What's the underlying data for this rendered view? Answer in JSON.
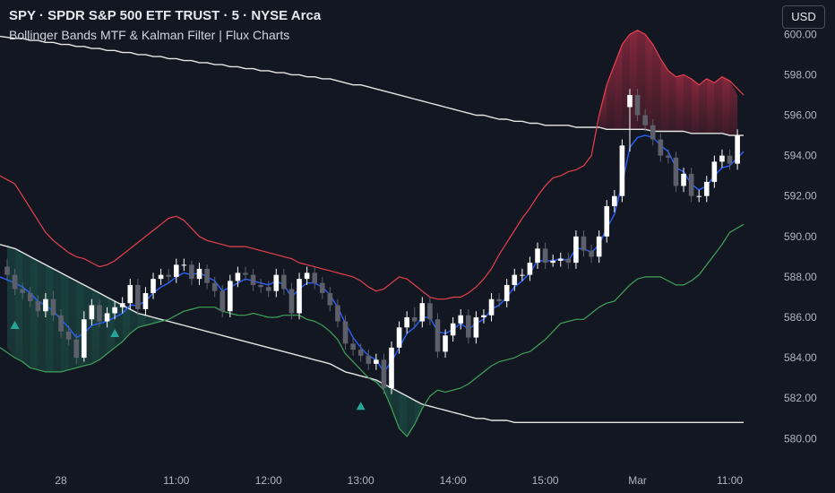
{
  "header": {
    "title": "SPY · SPDR S&P 500 ETF TRUST · 5 · NYSE Arca",
    "subtitle": "Bollinger Bands MTF & Kalman Filter | Flux Charts",
    "currency_button": "USD"
  },
  "colors": {
    "background": "#131722",
    "up_candle": "#ffffff",
    "down_candle": "#5d606b",
    "upper_band": "#e8404f",
    "lower_band": "#3fa35a",
    "kalman": "#2962ff",
    "htf_band": "#e6e6e6",
    "signal": "#26a69a"
  },
  "chart_data": {
    "type": "candlestick",
    "ylim": [
      579.5,
      602.0
    ],
    "y_ticks": [
      "580.00",
      "582.00",
      "584.00",
      "586.00",
      "588.00",
      "590.00",
      "592.00",
      "594.00",
      "596.00",
      "598.00",
      "600.00"
    ],
    "x_ticks": [
      {
        "label": "28",
        "bar": 7
      },
      {
        "label": "11:00",
        "bar": 22
      },
      {
        "label": "12:00",
        "bar": 34
      },
      {
        "label": "13:00",
        "bar": 46
      },
      {
        "label": "14:00",
        "bar": 58
      },
      {
        "label": "15:00",
        "bar": 70
      },
      {
        "label": "Mar",
        "bar": 82
      },
      {
        "label": "11:00",
        "bar": 94
      }
    ],
    "close": [
      588.1,
      587.4,
      587.2,
      586.8,
      586.3,
      586.9,
      586.1,
      585.3,
      584.9,
      584.0,
      585.9,
      586.6,
      585.8,
      586.2,
      586.5,
      586.7,
      587.6,
      586.4,
      587.2,
      587.9,
      588.1,
      588.0,
      588.6,
      588.6,
      587.9,
      588.4,
      587.7,
      587.3,
      586.3,
      587.8,
      588.2,
      588.1,
      587.6,
      587.5,
      587.3,
      588.1,
      587.4,
      586.2,
      587.9,
      588.2,
      587.7,
      587.2,
      586.6,
      585.8,
      584.7,
      584.4,
      584.1,
      583.7,
      583.9,
      582.5,
      584.5,
      585.5,
      586.0,
      585.8,
      586.7,
      585.9,
      584.3,
      585.1,
      585.7,
      586.1,
      585.0,
      586.0,
      586.1,
      586.9,
      586.8,
      587.6,
      588.1,
      588.1,
      588.7,
      589.4,
      588.7,
      588.8,
      588.9,
      588.7,
      590.0,
      589.3,
      589.0,
      590.0,
      591.5,
      592.0,
      594.5,
      597.0,
      596.0,
      595.5,
      594.8,
      594.0,
      593.9,
      592.5,
      593.1,
      592.0,
      592.0,
      592.7,
      593.7,
      594.0,
      593.6,
      595.0
    ],
    "open": [
      588.5,
      588.1,
      587.4,
      587.2,
      586.8,
      586.3,
      586.9,
      586.1,
      585.3,
      584.9,
      584.0,
      585.9,
      586.6,
      585.8,
      586.2,
      586.5,
      586.7,
      587.6,
      586.4,
      587.2,
      587.9,
      588.1,
      588.0,
      588.6,
      588.6,
      587.9,
      588.4,
      587.7,
      587.3,
      586.3,
      587.8,
      588.2,
      588.1,
      587.6,
      587.5,
      587.3,
      588.1,
      587.4,
      586.2,
      587.9,
      588.2,
      587.7,
      587.2,
      586.6,
      585.8,
      584.7,
      584.4,
      584.1,
      583.7,
      583.9,
      582.5,
      584.5,
      585.5,
      586.0,
      585.8,
      586.7,
      585.9,
      584.3,
      585.1,
      585.7,
      586.1,
      585.0,
      586.0,
      586.1,
      586.9,
      586.8,
      587.6,
      588.1,
      588.1,
      588.7,
      589.4,
      588.7,
      588.8,
      588.9,
      588.7,
      590.0,
      589.3,
      589.0,
      590.0,
      591.5,
      592.0,
      596.4,
      597.0,
      596.0,
      595.5,
      594.8,
      594.0,
      593.9,
      592.5,
      593.1,
      592.0,
      592.0,
      592.7,
      593.7,
      594.0,
      593.6
    ],
    "high": [
      588.9,
      588.4,
      587.7,
      587.5,
      587.1,
      587.2,
      587.3,
      586.4,
      585.6,
      585.2,
      586.3,
      586.9,
      586.9,
      586.5,
      586.8,
      587.0,
      587.9,
      587.9,
      587.5,
      588.2,
      588.4,
      588.4,
      588.9,
      588.9,
      588.8,
      588.7,
      588.6,
      588.0,
      587.6,
      588.1,
      588.5,
      588.5,
      588.4,
      587.9,
      587.8,
      588.4,
      588.4,
      587.7,
      588.2,
      588.5,
      588.5,
      588.0,
      587.5,
      586.9,
      586.1,
      585.0,
      584.7,
      584.4,
      584.2,
      584.2,
      584.8,
      585.8,
      586.3,
      586.5,
      587.0,
      587.0,
      586.2,
      585.4,
      586.0,
      586.4,
      586.4,
      586.3,
      586.4,
      587.2,
      587.2,
      587.9,
      588.4,
      588.4,
      589.0,
      589.7,
      589.7,
      589.1,
      589.2,
      589.2,
      590.3,
      590.3,
      589.6,
      590.3,
      591.8,
      592.3,
      594.8,
      597.3,
      597.3,
      596.3,
      595.8,
      595.1,
      594.3,
      594.2,
      593.4,
      593.4,
      592.3,
      593.0,
      594.0,
      594.3,
      594.3,
      595.3
    ],
    "low": [
      587.8,
      587.1,
      586.9,
      586.5,
      586.0,
      586.0,
      585.8,
      585.0,
      584.6,
      583.7,
      583.8,
      585.6,
      585.5,
      585.5,
      585.9,
      586.2,
      586.4,
      586.1,
      586.1,
      586.9,
      587.6,
      587.7,
      587.7,
      588.3,
      587.6,
      587.6,
      587.4,
      587.0,
      586.0,
      586.0,
      587.5,
      587.8,
      587.3,
      587.2,
      587.0,
      587.0,
      587.1,
      585.9,
      585.9,
      587.6,
      587.4,
      586.9,
      586.3,
      585.5,
      584.4,
      584.1,
      583.8,
      583.4,
      583.4,
      582.2,
      582.2,
      584.2,
      585.2,
      585.5,
      585.5,
      585.6,
      584.0,
      584.0,
      584.8,
      585.4,
      584.7,
      584.7,
      585.7,
      585.8,
      586.5,
      586.5,
      587.3,
      587.8,
      587.8,
      588.4,
      588.4,
      588.5,
      588.5,
      588.4,
      588.4,
      589.0,
      588.7,
      588.7,
      589.7,
      591.2,
      591.7,
      594.2,
      595.7,
      595.2,
      594.5,
      593.7,
      593.6,
      592.2,
      592.2,
      591.7,
      591.7,
      591.7,
      592.4,
      593.4,
      593.3,
      593.3
    ],
    "upper_band": [
      593.0,
      592.6,
      592.0,
      591.4,
      590.8,
      590.2,
      589.8,
      589.5,
      589.2,
      589.0,
      588.9,
      588.7,
      588.5,
      588.6,
      588.8,
      589.1,
      589.4,
      589.7,
      590.0,
      590.3,
      590.6,
      590.9,
      591.0,
      590.8,
      590.4,
      590.0,
      589.8,
      589.7,
      589.6,
      589.5,
      589.5,
      589.5,
      589.4,
      589.3,
      589.2,
      589.1,
      589.0,
      588.9,
      588.7,
      588.6,
      588.5,
      588.4,
      588.3,
      588.2,
      588.1,
      588.0,
      587.8,
      587.5,
      587.3,
      587.4,
      587.7,
      588.0,
      587.9,
      587.6,
      587.3,
      587.0,
      586.9,
      586.9,
      587.0,
      587.0,
      587.2,
      587.5,
      587.9,
      588.4,
      589.1,
      589.7,
      590.3,
      590.9,
      591.4,
      592.0,
      592.5,
      592.9,
      593.0,
      593.2,
      593.3,
      593.5,
      594.0,
      596.0,
      597.5,
      598.5,
      599.5,
      600.0,
      600.2,
      600.0,
      599.5,
      598.8,
      598.2,
      597.9,
      598.0,
      597.8,
      597.5,
      597.8,
      597.6,
      597.9,
      597.7,
      597.0
    ],
    "lower_band": [
      584.5,
      584.0,
      583.8,
      583.5,
      583.4,
      583.3,
      583.3,
      583.3,
      583.4,
      583.5,
      583.6,
      583.7,
      583.9,
      584.2,
      584.5,
      584.8,
      585.2,
      585.5,
      585.6,
      585.7,
      585.8,
      585.9,
      586.1,
      586.3,
      586.4,
      586.5,
      586.5,
      586.5,
      586.3,
      586.2,
      586.1,
      586.1,
      586.2,
      586.1,
      586.0,
      586.0,
      586.1,
      586.1,
      586.1,
      585.9,
      585.8,
      585.6,
      585.3,
      584.9,
      584.2,
      583.8,
      583.4,
      583.0,
      582.8,
      582.4,
      581.5,
      580.5,
      580.1,
      580.7,
      581.5,
      582.1,
      582.4,
      582.3,
      582.4,
      582.5,
      582.7,
      583.0,
      583.3,
      583.6,
      583.8,
      583.9,
      584.0,
      584.2,
      584.3,
      584.6,
      584.9,
      585.3,
      585.7,
      585.8,
      585.9,
      585.9,
      586.2,
      586.5,
      586.7,
      586.8,
      587.2,
      587.6,
      587.9,
      588.0,
      588.0,
      588.0,
      587.8,
      587.6,
      587.6,
      587.8,
      588.1,
      588.6,
      589.1,
      589.6,
      590.2,
      590.6
    ],
    "htf_band": [
      589.6,
      589.4,
      589.2,
      589.0,
      588.8,
      588.6,
      588.4,
      588.2,
      588.0,
      587.8,
      587.6,
      587.4,
      587.2,
      587.0,
      586.8,
      586.6,
      586.4,
      586.2,
      586.1,
      586.0,
      585.9,
      585.8,
      585.7,
      585.6,
      585.5,
      585.4,
      585.3,
      585.2,
      585.1,
      585.0,
      584.9,
      584.8,
      584.7,
      584.6,
      584.5,
      584.4,
      584.3,
      584.2,
      584.1,
      584.0,
      583.9,
      583.8,
      583.7,
      583.5,
      583.3,
      583.2,
      583.1,
      583.0,
      582.9,
      582.7,
      582.5,
      582.3,
      582.1,
      581.9,
      581.7,
      581.6,
      581.5,
      581.4,
      581.3,
      581.2,
      581.1,
      581.0,
      581.0,
      580.9,
      580.9,
      580.9,
      580.8,
      580.8,
      580.8,
      580.8,
      580.8,
      580.8,
      580.8,
      580.8,
      580.8,
      580.8,
      580.8,
      580.8,
      580.8,
      580.8,
      580.8,
      580.8,
      580.8,
      580.8,
      580.8,
      580.8,
      580.8,
      580.8,
      580.8,
      580.8,
      580.8,
      580.8,
      580.8,
      580.8,
      580.8,
      580.8
    ],
    "htf_upper": [
      599.9,
      599.8,
      599.8,
      599.7,
      599.7,
      599.6,
      599.6,
      599.5,
      599.5,
      599.4,
      599.4,
      599.3,
      599.3,
      599.2,
      599.2,
      599.1,
      599.1,
      599.0,
      599.0,
      598.9,
      598.9,
      598.8,
      598.8,
      598.7,
      598.7,
      598.6,
      598.6,
      598.5,
      598.5,
      598.4,
      598.4,
      598.3,
      598.3,
      598.2,
      598.2,
      598.1,
      598.1,
      598.0,
      598.0,
      597.9,
      597.9,
      597.8,
      597.8,
      597.7,
      597.6,
      597.5,
      597.5,
      597.4,
      597.3,
      597.2,
      597.1,
      597.0,
      596.9,
      596.8,
      596.7,
      596.6,
      596.5,
      596.4,
      596.3,
      596.2,
      596.1,
      596.0,
      596.0,
      595.9,
      595.8,
      595.8,
      595.7,
      595.7,
      595.6,
      595.6,
      595.5,
      595.5,
      595.5,
      595.5,
      595.4,
      595.4,
      595.4,
      595.4,
      595.3,
      595.3,
      595.3,
      595.3,
      595.3,
      595.3,
      595.2,
      595.2,
      595.2,
      595.2,
      595.2,
      595.1,
      595.1,
      595.1,
      595.1,
      595.1,
      595.0,
      595.0
    ],
    "kalman": [
      588.0,
      587.7,
      587.5,
      587.2,
      586.8,
      586.6,
      586.3,
      585.9,
      585.5,
      585.0,
      585.2,
      585.6,
      585.7,
      585.8,
      586.0,
      586.2,
      586.6,
      586.6,
      586.8,
      587.2,
      587.5,
      587.7,
      588.0,
      588.2,
      588.1,
      588.2,
      588.0,
      587.8,
      587.3,
      587.5,
      587.7,
      587.9,
      587.8,
      587.7,
      587.6,
      587.8,
      587.6,
      587.0,
      587.4,
      587.7,
      587.7,
      587.5,
      587.1,
      586.5,
      585.7,
      585.0,
      584.5,
      584.1,
      583.9,
      583.3,
      583.8,
      584.5,
      585.2,
      585.5,
      586.0,
      586.0,
      585.3,
      585.2,
      585.4,
      585.7,
      585.4,
      585.7,
      585.9,
      586.4,
      586.6,
      587.0,
      587.5,
      587.8,
      588.2,
      588.8,
      588.8,
      588.8,
      588.9,
      588.8,
      589.4,
      589.4,
      589.2,
      589.6,
      590.4,
      591.1,
      592.6,
      594.4,
      594.9,
      595.0,
      594.9,
      594.5,
      594.2,
      593.4,
      593.2,
      592.6,
      592.3,
      592.5,
      593.0,
      593.4,
      593.5,
      594.2
    ],
    "buy_signals": [
      {
        "bar": 1,
        "y": 585.6
      },
      {
        "bar": 14,
        "y": 585.2
      },
      {
        "bar": 46,
        "y": 581.6
      }
    ]
  }
}
